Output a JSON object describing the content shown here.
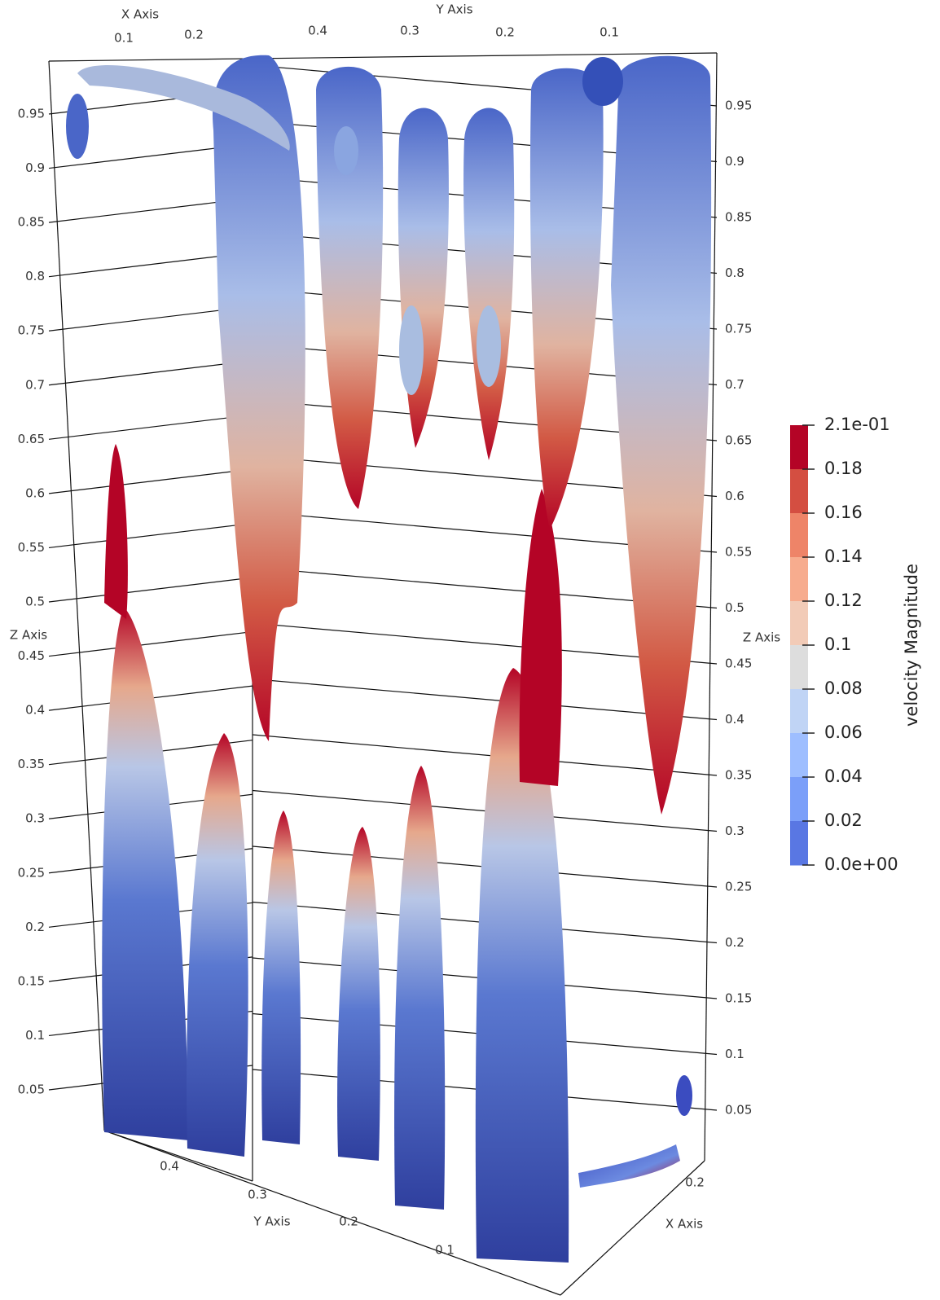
{
  "scene": {
    "top_x_axis": {
      "title": "X Axis",
      "ticks": [
        "0.1",
        "0.2"
      ]
    },
    "top_y_axis": {
      "title": "Y Axis",
      "ticks": [
        "0.4",
        "0.3",
        "0.2",
        "0.1"
      ]
    },
    "bottom_y_axis": {
      "title": "Y Axis",
      "ticks": [
        "0.4",
        "0.3",
        "0.2",
        "0.1"
      ]
    },
    "bottom_x_axis": {
      "title": "X Axis",
      "ticks": [
        "0.2"
      ]
    },
    "left_z_axis": {
      "title": "Z Axis",
      "ticks": [
        "0.95",
        "0.9",
        "0.85",
        "0.8",
        "0.75",
        "0.7",
        "0.65",
        "0.6",
        "0.55",
        "0.5",
        "0.45",
        "0.4",
        "0.35",
        "0.3",
        "0.25",
        "0.2",
        "0.15",
        "0.1",
        "0.05"
      ]
    },
    "right_z_axis": {
      "title": "Z Axis",
      "ticks": [
        "0.95",
        "0.9",
        "0.85",
        "0.8",
        "0.75",
        "0.7",
        "0.65",
        "0.6",
        "0.55",
        "0.5",
        "0.45",
        "0.4",
        "0.35",
        "0.3",
        "0.25",
        "0.2",
        "0.15",
        "0.1",
        "0.05"
      ]
    },
    "colorbar": {
      "title": "velocity Magnitude",
      "labels": [
        "2.1e-01",
        "0.18",
        "0.16",
        "0.14",
        "0.12",
        "0.1",
        "0.08",
        "0.06",
        "0.04",
        "0.02",
        "0.0e+00"
      ]
    }
  }
}
